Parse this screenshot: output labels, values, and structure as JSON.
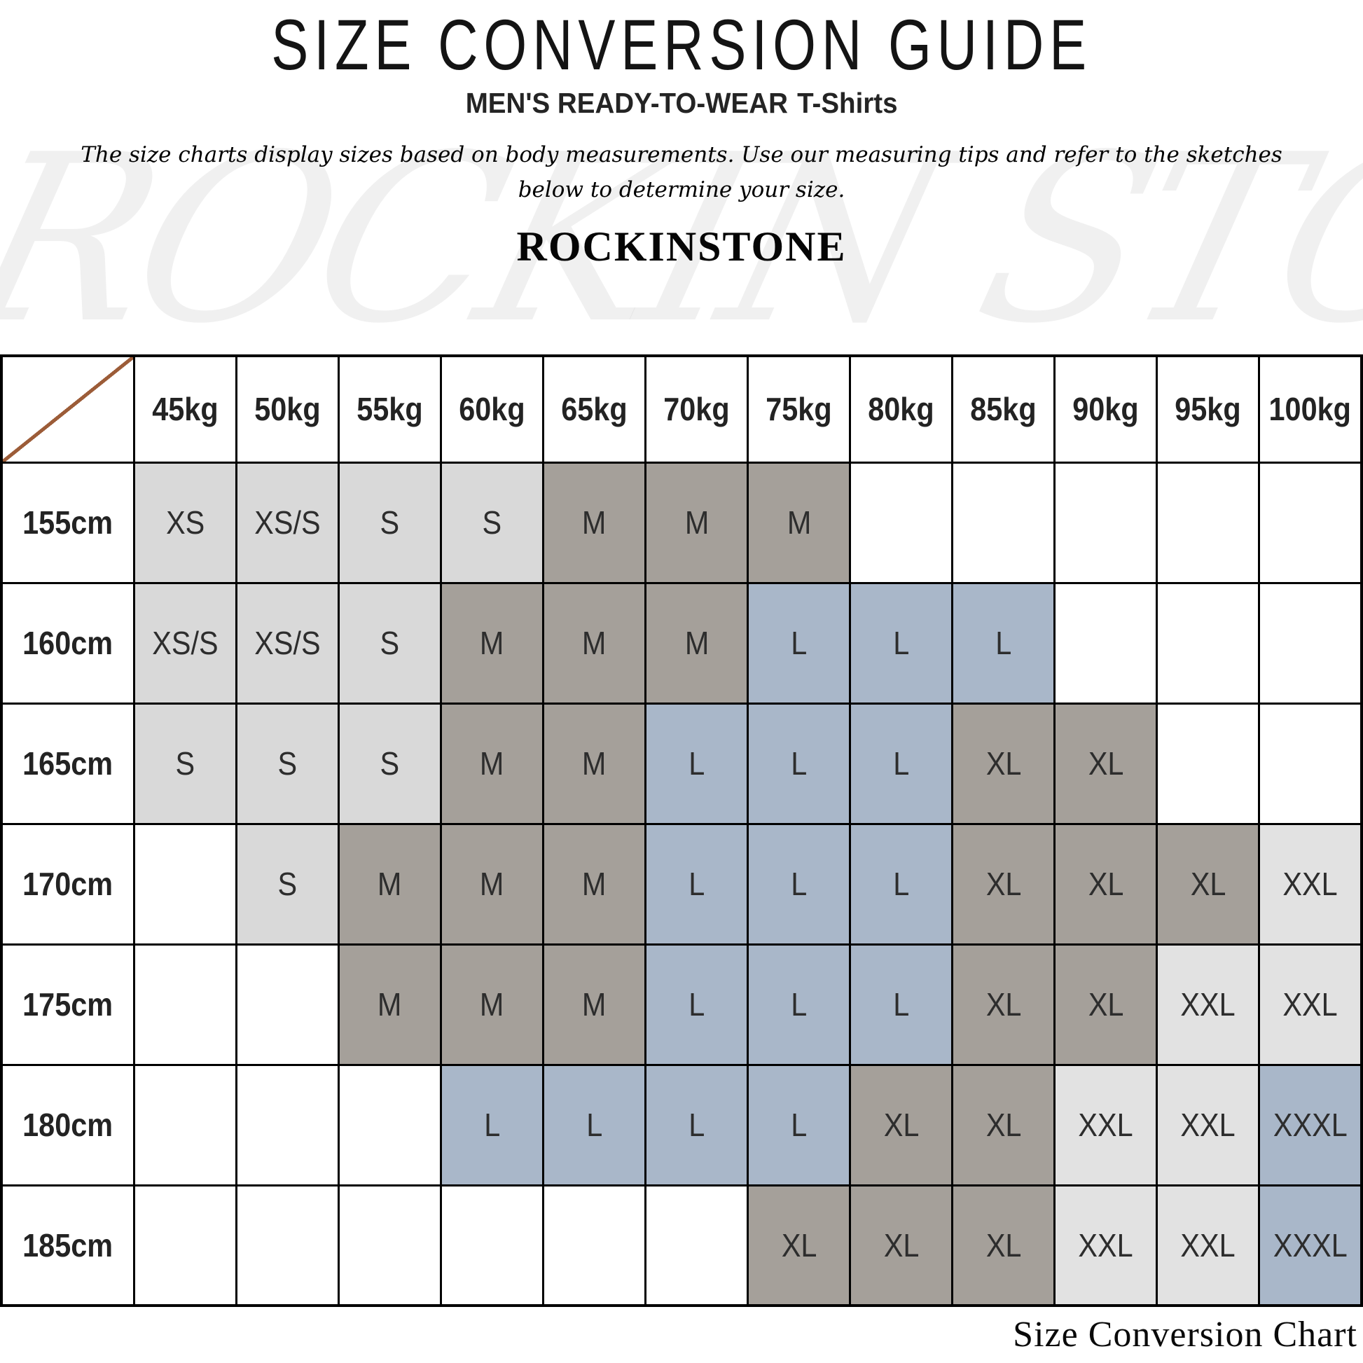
{
  "page": {
    "title": "SIZE CONVERSION GUIDE",
    "subtitle_category": "MEN'S READY-TO-WEAR",
    "subtitle_product": "T-Shirts",
    "description_line1": "The size charts display sizes based on body measurements. Use our measuring tips and refer to the sketches",
    "description_line2": "below to determine your size.",
    "brand": "ROCKINSTONE",
    "watermark": "ROCKIN STONE",
    "caption": "Size Conversion Chart"
  },
  "colors": {
    "light_gray": "#d9d9d9",
    "lighter_gray": "#e2e2e2",
    "taupe": "#a5a09a",
    "blue_gray": "#a9b7c9",
    "diagonal_line": "#9c5c38",
    "cell_text": "#2d2d2d",
    "none": ""
  },
  "chart_data": {
    "type": "table",
    "title": "SIZE CONVERSION GUIDE",
    "weight_columns": [
      "45kg",
      "50kg",
      "55kg",
      "60kg",
      "65kg",
      "70kg",
      "75kg",
      "80kg",
      "85kg",
      "90kg",
      "95kg",
      "100kg"
    ],
    "height_rows": [
      "155cm",
      "160cm",
      "165cm",
      "170cm",
      "175cm",
      "180cm",
      "185cm"
    ],
    "sizes": [
      [
        "XS",
        "XS/S",
        "S",
        "S",
        "M",
        "M",
        "M",
        "",
        "",
        "",
        "",
        ""
      ],
      [
        "XS/S",
        "XS/S",
        "S",
        "M",
        "M",
        "M",
        "L",
        "L",
        "L",
        "",
        "",
        ""
      ],
      [
        "S",
        "S",
        "S",
        "M",
        "M",
        "L",
        "L",
        "L",
        "XL",
        "XL",
        "",
        ""
      ],
      [
        "",
        "S",
        "M",
        "M",
        "M",
        "L",
        "L",
        "L",
        "XL",
        "XL",
        "XL",
        "XXL"
      ],
      [
        "",
        "",
        "M",
        "M",
        "M",
        "L",
        "L",
        "L",
        "XL",
        "XL",
        "XXL",
        "XXL"
      ],
      [
        "",
        "",
        "",
        "L",
        "L",
        "L",
        "L",
        "XL",
        "XL",
        "XXL",
        "XXL",
        "XXXL"
      ],
      [
        "",
        "",
        "",
        "",
        "",
        "",
        "XL",
        "XL",
        "XL",
        "XXL",
        "XXL",
        "XXXL"
      ]
    ],
    "fills": [
      [
        "light_gray",
        "light_gray",
        "light_gray",
        "light_gray",
        "taupe",
        "taupe",
        "taupe",
        "none",
        "none",
        "none",
        "none",
        "none"
      ],
      [
        "light_gray",
        "light_gray",
        "light_gray",
        "taupe",
        "taupe",
        "taupe",
        "blue_gray",
        "blue_gray",
        "blue_gray",
        "none",
        "none",
        "none"
      ],
      [
        "light_gray",
        "light_gray",
        "light_gray",
        "taupe",
        "taupe",
        "blue_gray",
        "blue_gray",
        "blue_gray",
        "taupe",
        "taupe",
        "none",
        "none"
      ],
      [
        "none",
        "light_gray",
        "taupe",
        "taupe",
        "taupe",
        "blue_gray",
        "blue_gray",
        "blue_gray",
        "taupe",
        "taupe",
        "taupe",
        "lighter_gray"
      ],
      [
        "none",
        "none",
        "taupe",
        "taupe",
        "taupe",
        "blue_gray",
        "blue_gray",
        "blue_gray",
        "taupe",
        "taupe",
        "lighter_gray",
        "lighter_gray"
      ],
      [
        "none",
        "none",
        "none",
        "blue_gray",
        "blue_gray",
        "blue_gray",
        "blue_gray",
        "taupe",
        "taupe",
        "lighter_gray",
        "lighter_gray",
        "blue_gray"
      ],
      [
        "none",
        "none",
        "none",
        "none",
        "none",
        "none",
        "taupe",
        "taupe",
        "taupe",
        "lighter_gray",
        "lighter_gray",
        "blue_gray"
      ]
    ],
    "legend_note": "size cell fill colors: XS/S light gray, M/XL taupe gray, L/XXXL blue gray, XXL lighter gray"
  }
}
